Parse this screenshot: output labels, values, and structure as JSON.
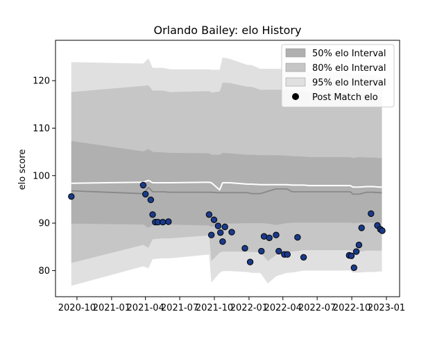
{
  "chart_data": {
    "type": "scatter",
    "title": "Orlando Bailey: elo History",
    "xlabel": "",
    "ylabel": "elo score",
    "xlim": [
      "2020-08-05",
      "2023-02-05"
    ],
    "ylim": [
      74.5,
      128.5
    ],
    "x_ticks": [
      {
        "date": "2020-10-01",
        "label": "2020-10"
      },
      {
        "date": "2021-01-01",
        "label": "2021-01"
      },
      {
        "date": "2021-04-01",
        "label": "2021-04"
      },
      {
        "date": "2021-07-01",
        "label": "2021-07"
      },
      {
        "date": "2021-10-01",
        "label": "2021-10"
      },
      {
        "date": "2022-01-01",
        "label": "2022-01"
      },
      {
        "date": "2022-04-01",
        "label": "2022-04"
      },
      {
        "date": "2022-07-01",
        "label": "2022-07"
      },
      {
        "date": "2022-10-01",
        "label": "2022-10"
      },
      {
        "date": "2023-01-01",
        "label": "2023-01"
      }
    ],
    "y_ticks": [
      80,
      90,
      100,
      110,
      120
    ],
    "grid": false,
    "legend_position": "top-right",
    "legend": [
      {
        "label": "50% elo Interval",
        "kind": "patch",
        "color": "#b0b0b0"
      },
      {
        "label": "80% elo Interval",
        "kind": "patch",
        "color": "#c6c6c6"
      },
      {
        "label": "95% elo Interval",
        "kind": "patch",
        "color": "#e0e0e0"
      },
      {
        "label": "Post Match elo",
        "kind": "marker",
        "color": "#000000"
      }
    ],
    "band_dates": [
      "2020-09-16",
      "2021-03-26",
      "2021-04-09",
      "2021-04-20",
      "2021-05-17",
      "2021-06-06",
      "2021-09-17",
      "2021-09-23",
      "2021-10-15",
      "2021-10-23",
      "2021-11-11",
      "2021-12-28",
      "2022-01-08",
      "2022-01-31",
      "2022-02-20",
      "2022-03-14",
      "2022-04-11",
      "2022-04-26",
      "2022-05-26",
      "2022-06-12",
      "2022-09-27",
      "2022-10-04",
      "2022-10-21",
      "2022-11-09",
      "2022-11-28",
      "2022-12-12",
      "2022-12-20"
    ],
    "bands": [
      {
        "name": "95% elo Interval",
        "color": "#e0e0e0",
        "lower": [
          76.8,
          80.9,
          80.5,
          82.4,
          82.6,
          82.6,
          83.4,
          77.5,
          79.5,
          79.9,
          79.9,
          79.7,
          79.5,
          79.5,
          77.3,
          78.8,
          79.5,
          79.6,
          80.0,
          80.0,
          80.0,
          79.6,
          79.6,
          79.7,
          79.7,
          79.8,
          79.8
        ],
        "upper": [
          123.9,
          123.6,
          124.7,
          122.7,
          122.7,
          122.4,
          122.4,
          122.3,
          122.3,
          124.9,
          124.6,
          123.3,
          123.3,
          122.5,
          122.5,
          122.5,
          122.4,
          122.2,
          122.1,
          121.8,
          121.8,
          121.1,
          121.4,
          121.1,
          121.1,
          120.8,
          120.8
        ]
      },
      {
        "name": "80% elo Interval",
        "color": "#c6c6c6",
        "lower": [
          81.6,
          85.4,
          84.8,
          86.6,
          86.8,
          86.8,
          87.4,
          82.0,
          83.8,
          84.0,
          84.0,
          84.0,
          83.9,
          83.9,
          82.0,
          83.3,
          83.9,
          84.0,
          84.3,
          84.3,
          84.3,
          84.0,
          84.0,
          84.2,
          84.2,
          84.2,
          84.2
        ],
        "upper": [
          117.6,
          118.9,
          119.0,
          117.9,
          117.9,
          117.6,
          117.8,
          117.5,
          117.7,
          119.6,
          119.5,
          118.7,
          118.7,
          118.1,
          118.1,
          118.1,
          118.1,
          117.9,
          117.7,
          117.5,
          117.5,
          117.0,
          117.3,
          117.0,
          117.0,
          116.7,
          116.7
        ]
      },
      {
        "name": "50% elo Interval",
        "color": "#b0b0b0",
        "lower": [
          89.9,
          89.7,
          89.0,
          89.6,
          89.7,
          89.7,
          89.5,
          89.2,
          89.8,
          89.9,
          89.9,
          90.0,
          90.0,
          90.0,
          89.9,
          89.6,
          90.0,
          90.1,
          90.1,
          90.1,
          90.1,
          90.0,
          90.1,
          90.1,
          90.1,
          90.0,
          90.0
        ],
        "upper": [
          107.3,
          105.1,
          105.6,
          105.0,
          104.9,
          104.8,
          104.7,
          104.4,
          104.4,
          104.8,
          104.7,
          104.4,
          104.4,
          104.3,
          104.3,
          104.3,
          104.2,
          104.1,
          104.0,
          103.9,
          103.9,
          103.7,
          103.9,
          103.8,
          103.8,
          103.7,
          103.7
        ]
      }
    ],
    "mean_line": {
      "color": "#888888",
      "values": [
        96.8,
        96.2,
        97.5,
        96.6,
        96.6,
        96.5,
        96.5,
        96.5,
        96.4,
        96.4,
        96.4,
        96.4,
        96.2,
        96.2,
        96.7,
        97.2,
        97.2,
        96.6,
        96.6,
        96.6,
        96.6,
        96.1,
        96.1,
        96.5,
        96.5,
        96.4,
        96.4
      ]
    },
    "median_line": {
      "color": "#ffffff",
      "values": [
        98.4,
        98.6,
        99.0,
        98.5,
        98.5,
        98.5,
        98.6,
        98.5,
        97.0,
        98.5,
        98.5,
        98.2,
        98.2,
        98.1,
        98.1,
        98.1,
        98.1,
        98.0,
        98.0,
        97.9,
        97.9,
        97.6,
        97.6,
        97.7,
        97.7,
        97.6,
        97.6
      ]
    },
    "points": {
      "name": "Post Match elo",
      "color": "#1a3a8a",
      "edge": "#000000",
      "x": [
        "2020-09-16",
        "2021-03-26",
        "2021-04-01",
        "2021-04-15",
        "2021-04-20",
        "2021-04-27",
        "2021-05-04",
        "2021-05-17",
        "2021-06-01",
        "2021-09-17",
        "2021-09-23",
        "2021-09-30",
        "2021-10-11",
        "2021-10-17",
        "2021-10-23",
        "2021-10-29",
        "2021-11-16",
        "2021-12-21",
        "2022-01-04",
        "2022-02-03",
        "2022-02-10",
        "2022-02-24",
        "2022-03-14",
        "2022-03-21",
        "2022-04-05",
        "2022-04-13",
        "2022-05-10",
        "2022-05-26",
        "2022-09-24",
        "2022-09-30",
        "2022-10-07",
        "2022-10-13",
        "2022-10-20",
        "2022-10-27",
        "2022-11-21",
        "2022-12-08",
        "2022-12-16",
        "2022-12-21"
      ],
      "y": [
        95.6,
        98.0,
        96.1,
        94.9,
        91.8,
        90.2,
        90.2,
        90.2,
        90.3,
        91.8,
        87.5,
        90.7,
        89.4,
        88.0,
        86.1,
        89.2,
        88.1,
        84.7,
        81.8,
        84.1,
        87.2,
        86.9,
        87.5,
        84.1,
        83.4,
        83.4,
        87.0,
        82.8,
        83.2,
        83.1,
        80.6,
        84.0,
        85.4,
        89.0,
        92.0,
        89.5,
        88.7,
        88.4
      ]
    }
  }
}
